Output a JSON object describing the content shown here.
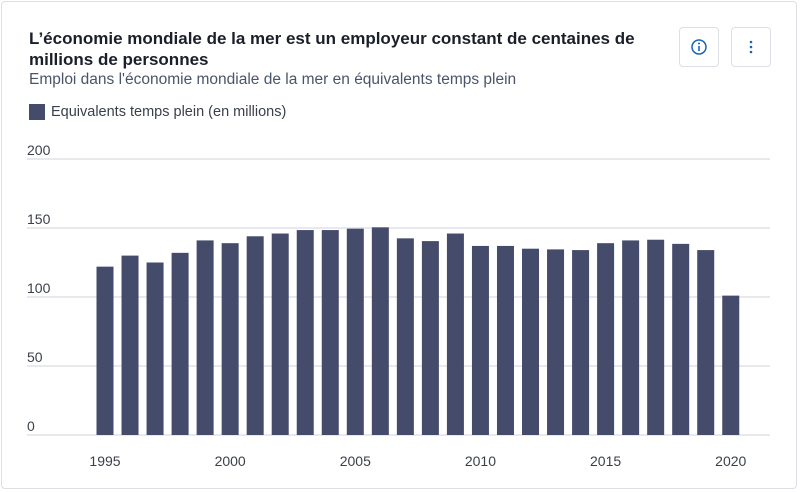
{
  "title": "L’économie mondiale de la mer est un employeur constant de centaines de millions de personnes",
  "subtitle": "Emploi dans l'économie mondiale de la mer en équivalents temps plein",
  "buttons": {
    "info_icon": "info-circle-icon",
    "menu_icon": "vertical-ellipsis-icon"
  },
  "chart_data": {
    "type": "bar",
    "title": "L’économie mondiale de la mer est un employeur constant de centaines de millions de personnes",
    "xlabel": "",
    "ylabel": "",
    "ylim": [
      0,
      200
    ],
    "yticks": [
      0,
      50,
      100,
      150,
      200
    ],
    "xtick_labels": [
      "1995",
      "2000",
      "2005",
      "2010",
      "2015",
      "2020"
    ],
    "grid": true,
    "legend_position": "top-left",
    "categories": [
      1995,
      1996,
      1997,
      1998,
      1999,
      2000,
      2001,
      2002,
      2003,
      2004,
      2005,
      2006,
      2007,
      2008,
      2009,
      2010,
      2011,
      2012,
      2013,
      2014,
      2015,
      2016,
      2017,
      2018,
      2019,
      2020
    ],
    "series": [
      {
        "name": "Equivalents temps plein (en millions)",
        "color": "#454b6b",
        "values": [
          122,
          130,
          125,
          132,
          141,
          139,
          144,
          146,
          148.5,
          148.5,
          149.5,
          150.5,
          142.5,
          140.5,
          146,
          137,
          137,
          135,
          134.5,
          134,
          139,
          141,
          141.5,
          138.5,
          134,
          101
        ]
      }
    ]
  }
}
